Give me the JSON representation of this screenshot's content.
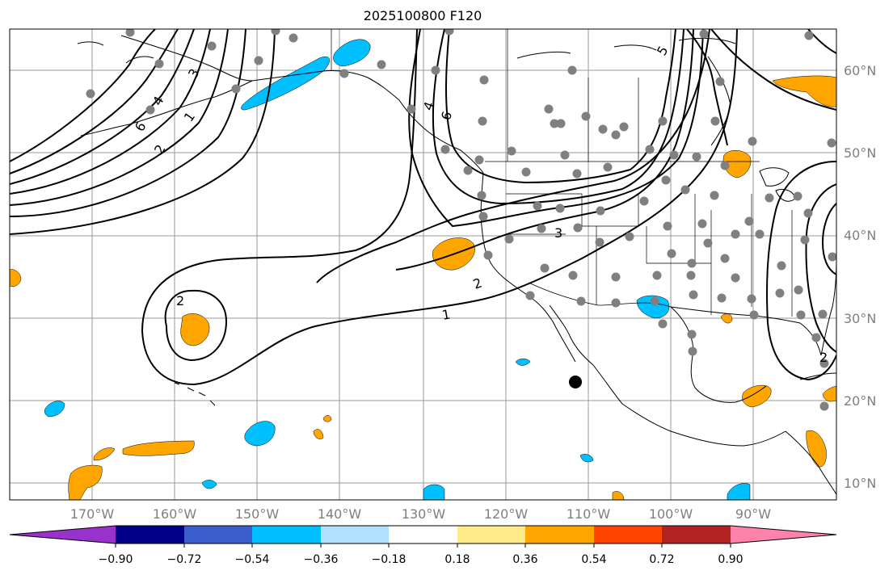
{
  "title": "2025100800 F120",
  "map": {
    "lat_labels": [
      "60°N",
      "50°N",
      "40°N",
      "30°N",
      "20°N",
      "10°N"
    ],
    "lon_labels": [
      "170°W",
      "160°W",
      "150°W",
      "140°W",
      "130°W",
      "120°W",
      "110°W",
      "100°W",
      "90°W"
    ],
    "contour_labels": [
      "6",
      "4",
      "3",
      "2",
      "1",
      "2",
      "4",
      "6",
      "5",
      "3",
      "2",
      "1",
      "2"
    ],
    "colors": {
      "positive_fill": "#ffa500",
      "negative_fill": "#00bfff",
      "contour": "#000000",
      "station": "#808080",
      "marker": "#000000",
      "grid": "#999999"
    }
  },
  "colorbar": {
    "tick_labels": [
      "−0.90",
      "−0.72",
      "−0.54",
      "−0.36",
      "−0.18",
      "0.18",
      "0.36",
      "0.54",
      "0.72",
      "0.90"
    ],
    "colors": [
      "#9932cc",
      "#00008b",
      "#3a5fcd",
      "#00bfff",
      "#b0e2ff",
      "#ffffff",
      "#ffec8b",
      "#ffa500",
      "#ff4500",
      "#b22222",
      "#ff82ab"
    ]
  }
}
